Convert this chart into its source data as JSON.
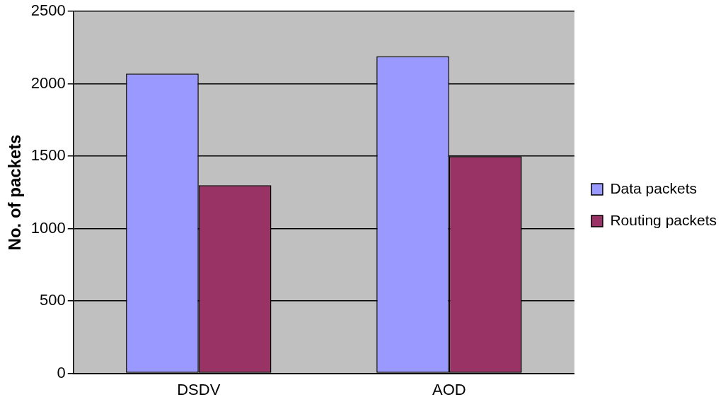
{
  "chart_data": {
    "type": "bar",
    "ylabel": "No. of packets",
    "categories": [
      "DSDV",
      "AOD"
    ],
    "series": [
      {
        "name": "Data packets",
        "color": "#9999ff",
        "values": [
          2070,
          2190
        ]
      },
      {
        "name": "Routing packets",
        "color": "#993366",
        "values": [
          1300,
          1500
        ]
      }
    ],
    "ylim": [
      0,
      2500
    ],
    "yticks": [
      0,
      500,
      1000,
      1500,
      2000,
      2500
    ],
    "grid": "y",
    "legend": "right"
  }
}
